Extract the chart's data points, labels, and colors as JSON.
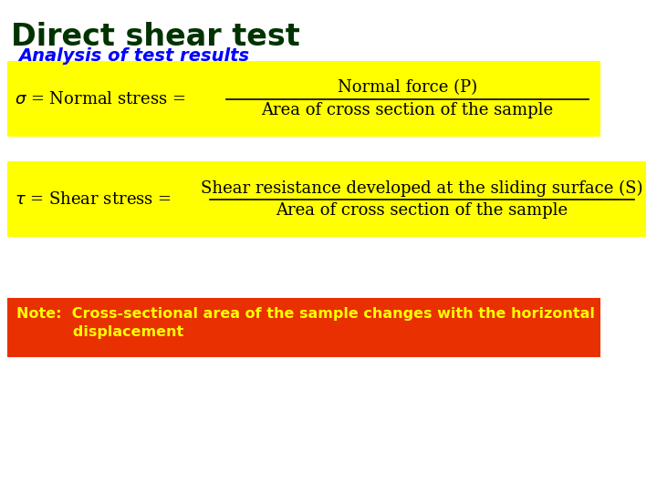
{
  "title": "Direct shear test",
  "subtitle": "Analysis of test results",
  "title_color": "#003300",
  "subtitle_color": "#0000FF",
  "bg_color": "#FFFFFF",
  "yellow_bg": "#FFFF00",
  "red_bg": "#E83000",
  "note_text_color": "#FFFF00",
  "sigma_label": "$\\sigma$ = Normal stress = ",
  "sigma_numerator": "Normal force (P)",
  "sigma_denominator": "Area of cross section of the sample",
  "tau_label": "$\\tau$ = Shear stress = ",
  "tau_numerator": "Shear resistance developed at the sliding surface (S)",
  "tau_denominator": "Area of cross section of the sample",
  "note_line1": "Note:  Cross-sectional area of the sample changes with the horizontal",
  "note_line2": "           displacement"
}
